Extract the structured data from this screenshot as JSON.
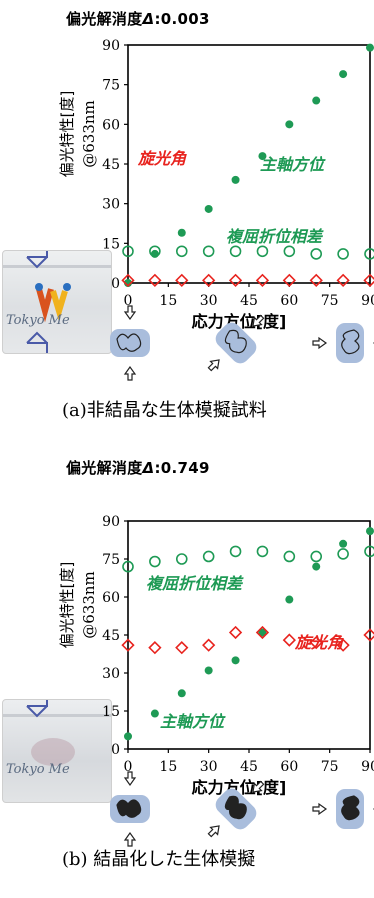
{
  "chart_data": [
    {
      "type": "scatter",
      "title_label": "偏光解消度",
      "title_symbol": "Δ",
      "title_value": "0.003",
      "ylabel": "偏光特性[度]",
      "ylabel_unit": "@633nm",
      "xlabel": "応力方位[度]",
      "x_ticks": [
        "0",
        "15",
        "30",
        "45",
        "60",
        "75",
        "90"
      ],
      "y_ticks": [
        "0",
        "15",
        "30",
        "45",
        "60",
        "75",
        "90"
      ],
      "xlim": [
        0,
        90
      ],
      "ylim": [
        0,
        90
      ],
      "caption": "(a)非結晶な生体模擬試料",
      "photo_text": "Tokyo Me",
      "series": [
        {
          "name": "主軸方位",
          "marker": "filled-circle",
          "color": "#1e9a55",
          "x": [
            0,
            10,
            20,
            30,
            40,
            50,
            60,
            70,
            80,
            90
          ],
          "y": [
            0,
            11,
            19,
            28,
            39,
            48,
            60,
            69,
            79,
            89
          ]
        },
        {
          "name": "複屈折位相差",
          "marker": "open-circle",
          "color": "#1e9a55",
          "x": [
            0,
            10,
            20,
            30,
            40,
            50,
            60,
            70,
            80,
            90
          ],
          "y": [
            12,
            12,
            12,
            12,
            12,
            12,
            12,
            11,
            11,
            11
          ]
        },
        {
          "name": "旋光角",
          "marker": "open-diamond",
          "color": "#e8231e",
          "x": [
            0,
            10,
            20,
            30,
            40,
            50,
            60,
            70,
            80,
            90
          ],
          "y": [
            1,
            1,
            1,
            1,
            1,
            1,
            1,
            1,
            1,
            1
          ]
        }
      ]
    },
    {
      "type": "scatter",
      "title_label": "偏光解消度",
      "title_symbol": "Δ",
      "title_value": "0.749",
      "ylabel": "偏光特性[度]",
      "ylabel_unit": "@633nm",
      "xlabel": "応力方位[度]",
      "x_ticks": [
        "0",
        "15",
        "30",
        "45",
        "60",
        "75",
        "90"
      ],
      "y_ticks": [
        "0",
        "15",
        "30",
        "45",
        "60",
        "75",
        "90"
      ],
      "xlim": [
        0,
        90
      ],
      "ylim": [
        0,
        90
      ],
      "caption": "(b) 結晶化した生体模擬",
      "photo_text": "Tokyo Me",
      "series": [
        {
          "name": "主軸方位",
          "marker": "filled-circle",
          "color": "#1e9a55",
          "x": [
            0,
            10,
            20,
            30,
            40,
            50,
            60,
            70,
            80,
            90
          ],
          "y": [
            5,
            14,
            22,
            31,
            35,
            46,
            59,
            72,
            81,
            86
          ]
        },
        {
          "name": "複屈折位相差",
          "marker": "open-circle",
          "color": "#1e9a55",
          "x": [
            0,
            10,
            20,
            30,
            40,
            50,
            60,
            70,
            80,
            90
          ],
          "y": [
            72,
            74,
            75,
            76,
            78,
            78,
            76,
            76,
            77,
            78
          ]
        },
        {
          "name": "旋光角",
          "marker": "open-diamond",
          "color": "#e8231e",
          "x": [
            0,
            10,
            20,
            30,
            40,
            50,
            60,
            70,
            80,
            90
          ],
          "y": [
            41,
            40,
            40,
            41,
            46,
            46,
            43,
            42,
            41,
            45
          ]
        }
      ]
    }
  ]
}
